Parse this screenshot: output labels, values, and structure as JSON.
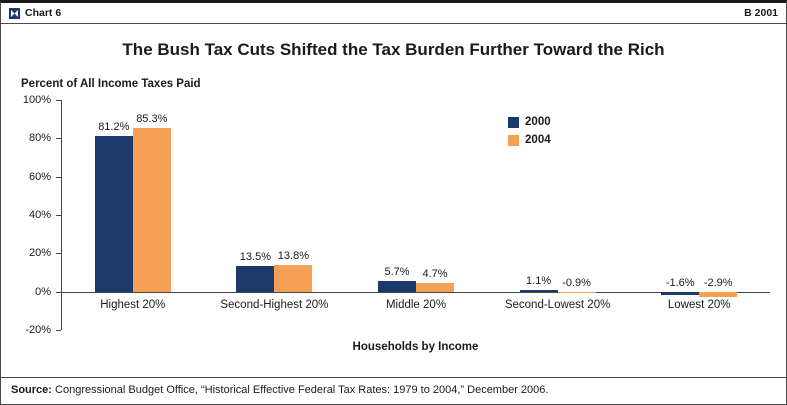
{
  "header": {
    "logo": "bowtie-logo-icon",
    "chart_label": "Chart 6",
    "right_label": "B 2001"
  },
  "source": {
    "prefix": "Source:",
    "text": " Congressional Budget Office, “Historical Effective Federal Tax Rates: 1979 to 2004,” December 2006."
  },
  "colors": {
    "series_2000": "#1B3A6B",
    "series_2004": "#F5A055",
    "axis": "#444444",
    "logo_blue": "#1B3A6B"
  },
  "chart_data": {
    "type": "bar",
    "title": "The Bush Tax Cuts Shifted the Tax Burden Further Toward the Rich",
    "ylabel": "Percent of All Income Taxes Paid",
    "xlabel": "Households by Income",
    "categories": [
      "Highest 20%",
      "Second-Highest 20%",
      "Middle 20%",
      "Second-Lowest 20%",
      "Lowest 20%"
    ],
    "series": [
      {
        "name": "2000",
        "color": "#1B3A6B",
        "values": [
          81.2,
          13.5,
          5.7,
          1.1,
          -1.6
        ]
      },
      {
        "name": "2004",
        "color": "#F5A055",
        "values": [
          85.3,
          13.8,
          4.7,
          -0.9,
          -2.9
        ]
      }
    ],
    "ylim": [
      -20,
      100
    ],
    "yticks": [
      100,
      80,
      60,
      40,
      20,
      0,
      -20
    ],
    "grid": false,
    "legend_position": "upper-right-inside",
    "value_label_format": "{value}%"
  }
}
